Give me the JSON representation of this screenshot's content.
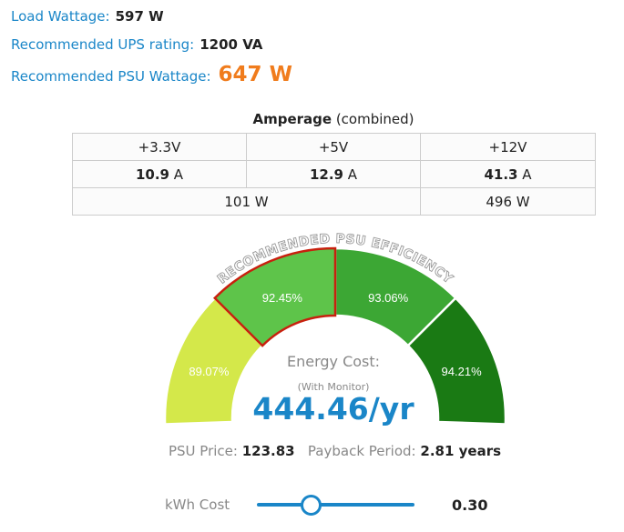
{
  "summary": {
    "load_label": "Load Wattage:",
    "load_value": "597 W",
    "ups_label": "Recommended UPS rating:",
    "ups_value": "1200 VA",
    "psu_label": "Recommended PSU Wattage:",
    "psu_value": "647 W"
  },
  "amperage": {
    "title_bold": "Amperage",
    "title_rest": " (combined)",
    "rails": [
      "+3.3V",
      "+5V",
      "+12V"
    ],
    "amps": [
      "10.9",
      "12.9",
      "41.3"
    ],
    "amp_unit": " A",
    "watts_low": "101 W",
    "watts_12v": "496 W"
  },
  "gauge": {
    "arc_label": "RECOMMENDED PSU EFFICIENCY",
    "segments": [
      {
        "label": "89.07%",
        "color": "#d4e84a",
        "selected": false
      },
      {
        "label": "92.45%",
        "color": "#5ec44a",
        "selected": true
      },
      {
        "label": "93.06%",
        "color": "#3ca734",
        "selected": false
      },
      {
        "label": "94.21%",
        "color": "#1a7a14",
        "selected": false
      }
    ],
    "selected_border": "#c8200e",
    "energy_label": "Energy Cost:",
    "monitor_label": "(With Monitor)",
    "energy_value": "444.46/yr"
  },
  "info": {
    "price_label": "PSU Price:",
    "price_value": "123.83",
    "payback_label": "Payback Period:",
    "payback_value": "2.81 years"
  },
  "kwh": {
    "label": "kWh Cost",
    "value": "0.30",
    "slider_fraction": 0.34,
    "accent": "#1a86c8"
  }
}
